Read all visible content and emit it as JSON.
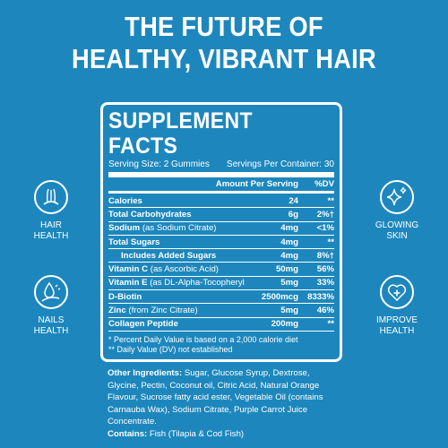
{
  "headline": {
    "line1": "THE FUTURE OF",
    "line2": "HEALTHY, VIBRANT HAIR"
  },
  "facts": {
    "title": "SUPPLEMENT FACTS",
    "serving_size": "Serving Size: 2 Gummies",
    "servings_per_container": "Servings Per Container: 30",
    "col_amount": "Amount Per Serving",
    "col_dv": "%DV",
    "rows": [
      {
        "name": "Calories",
        "sub": "",
        "amount": "24",
        "dv": "**"
      },
      {
        "name": "Total Carbohydrates",
        "sub": "",
        "amount": "6g",
        "dv": "2%†"
      },
      {
        "name": "Sodium",
        "sub": " (as Sodium Citrate)",
        "amount": "4mg",
        "dv": "<1%"
      },
      {
        "name": "Total Sugars",
        "sub": "",
        "amount": "4mg",
        "dv": "**"
      },
      {
        "name": "Includes Added Sugars",
        "sub": "",
        "amount": "4mg",
        "dv": "8%†"
      },
      {
        "name": "Vitamin C",
        "sub": " (as Ascorbic Acid)",
        "amount": "50mg",
        "dv": "56%"
      },
      {
        "name": "Vitamin E",
        "sub": " (as DL-Alpha-Tocopheryl Acetate)",
        "amount": "5mg",
        "dv": "33%"
      },
      {
        "name": "D-Biotin",
        "sub": "",
        "amount": "2500mcg",
        "dv": "8333%"
      },
      {
        "name": "Zinc",
        "sub": " (from Zinc Citrate)",
        "amount": "5mg",
        "dv": "46%"
      },
      {
        "name": "Collagen Peptide",
        "sub": "",
        "amount": "200mg",
        "dv": "**"
      }
    ],
    "footnote1": "* Percent Daily Value is based on a 2,000 calorie diet",
    "footnote2": "** Daily Value (DV) not established"
  },
  "ingredients": {
    "label": "Other Ingredients:",
    "text": " Sugar, Glucose Syrup, Dextrose, Glycine, Pectin, Coconut oil, Citric Acid, Natural Orange Flavour, Sucrose fatty acid ester, Vegetable Oil (contains Carnauba Wax), Sodium Citrate, Purple Carrot Juice Concentrate.",
    "contains_label": "Contains:",
    "contains_text": " Fish (Tilapia & Cod Fish)"
  },
  "badges": {
    "hair": {
      "line1": "HAIR",
      "line2": "HEALTH",
      "icon": "hair-follicle-icon"
    },
    "nails": {
      "line1": "NAILS",
      "line2": "HEALTH",
      "icon": "nail-drop-icon"
    },
    "skin": {
      "line1": "GLOWING",
      "line2": "SKIN",
      "icon": "sparkle-icon"
    },
    "improve": {
      "line1": "IMPROVE",
      "line2": "HEALTH",
      "icon": "heart-plus-icon"
    }
  },
  "colors": {
    "background": "#1d87bd",
    "foreground": "#ffffff"
  }
}
